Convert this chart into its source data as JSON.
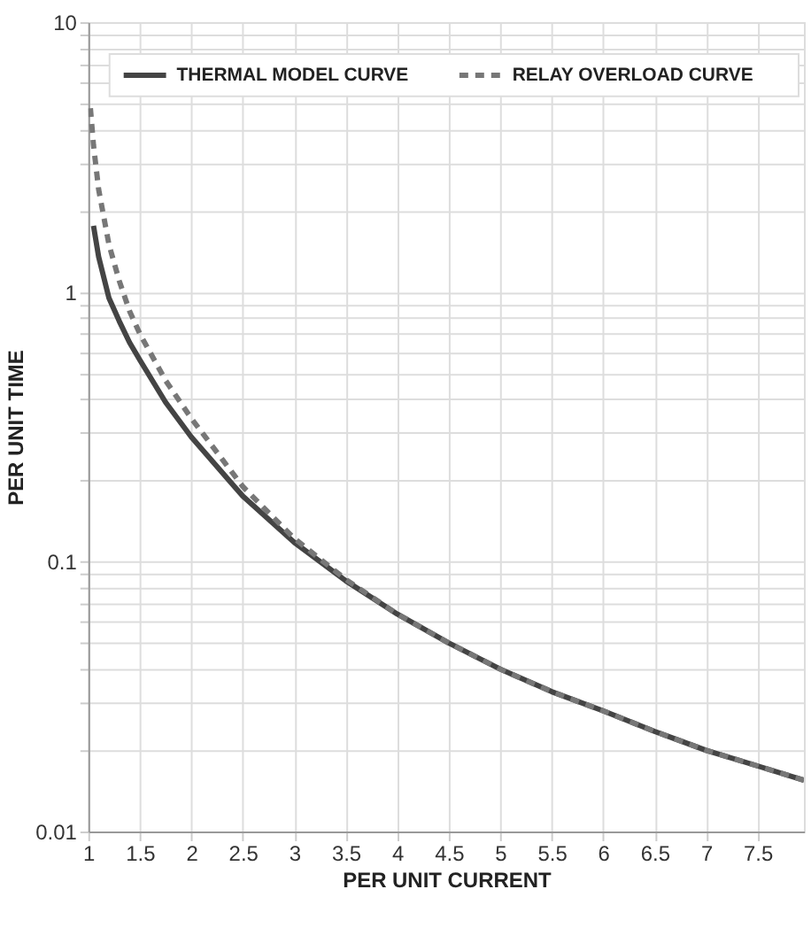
{
  "chart_data": {
    "type": "line",
    "xlabel": "PER UNIT CURRENT",
    "ylabel": "PER UNIT TIME",
    "series": [
      {
        "name": "THERMAL MODEL CURVE",
        "color": "#444444",
        "line_style": "solid",
        "x": [
          1.05,
          1.1,
          1.2,
          1.3,
          1.4,
          1.5,
          1.75,
          2,
          2.5,
          3,
          3.5,
          4,
          4.5,
          5,
          5.5,
          6,
          6.5,
          7,
          7.5,
          7.95
        ],
        "values": [
          1.76,
          1.35,
          0.95,
          0.78,
          0.65,
          0.56,
          0.39,
          0.29,
          0.175,
          0.118,
          0.085,
          0.064,
          0.05,
          0.04,
          0.033,
          0.028,
          0.0235,
          0.02,
          0.0175,
          0.0155
        ]
      },
      {
        "name": "RELAY OVERLOAD CURVE",
        "color": "#777777",
        "line_style": "dashed",
        "x": [
          1.02,
          1.05,
          1.1,
          1.2,
          1.3,
          1.4,
          1.5,
          1.75,
          2,
          2.5,
          3,
          3.5,
          4,
          4.5,
          5,
          5.5,
          6,
          6.5,
          7,
          7.5,
          7.95
        ],
        "values": [
          4.8,
          3.5,
          2.4,
          1.5,
          1.1,
          0.85,
          0.7,
          0.47,
          0.34,
          0.19,
          0.122,
          0.086,
          0.064,
          0.05,
          0.04,
          0.033,
          0.028,
          0.0235,
          0.02,
          0.0175,
          0.0155
        ]
      }
    ],
    "xlim": [
      1,
      7.95
    ],
    "xticks": [
      1,
      1.5,
      2,
      2.5,
      3,
      3.5,
      4,
      4.5,
      5,
      5.5,
      6,
      6.5,
      7,
      7.5
    ],
    "ylim": [
      0.01,
      10
    ],
    "yticks": [
      0.01,
      {
        "value": 0.02,
        "label": null
      },
      {
        "value": 0.03,
        "label": null
      },
      {
        "value": 0.04,
        "label": null
      },
      {
        "value": 0.05,
        "label": null
      },
      {
        "value": 0.06,
        "label": null
      },
      {
        "value": 0.07,
        "label": null
      },
      {
        "value": 0.08,
        "label": null
      },
      {
        "value": 0.09,
        "label": null
      },
      0.1,
      {
        "value": 0.2,
        "label": null
      },
      {
        "value": 0.3,
        "label": null
      },
      {
        "value": 0.4,
        "label": null
      },
      {
        "value": 0.5,
        "label": null
      },
      {
        "value": 0.6,
        "label": null
      },
      {
        "value": 0.7,
        "label": null
      },
      {
        "value": 0.8,
        "label": null
      },
      {
        "value": 0.9,
        "label": null
      },
      1,
      {
        "value": 2,
        "label": null
      },
      {
        "value": 3,
        "label": null
      },
      {
        "value": 4,
        "label": null
      },
      {
        "value": 5,
        "label": null
      },
      {
        "value": 6,
        "label": null
      },
      {
        "value": 7,
        "label": null
      },
      {
        "value": 8,
        "label": null
      },
      {
        "value": 9,
        "label": null
      },
      10
    ],
    "log": true,
    "grid": true,
    "legend": "top"
  }
}
